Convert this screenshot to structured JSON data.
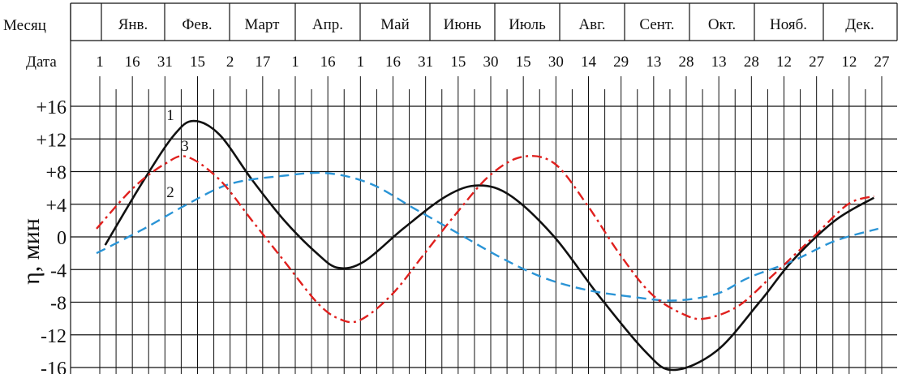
{
  "chart_data": {
    "type": "line",
    "row_labels": {
      "month": "Месяц",
      "date": "Дата"
    },
    "months": [
      "Янв.",
      "Фев.",
      "Март",
      "Апр.",
      "Май",
      "Июнь",
      "Июль",
      "Авг.",
      "Сент.",
      "Окт.",
      "Нояб.",
      "Дек."
    ],
    "dates": [
      "1",
      "16",
      "31",
      "15",
      "2",
      "17",
      "1",
      "16",
      "1",
      "16",
      "31",
      "15",
      "30",
      "15",
      "30",
      "14",
      "29",
      "13",
      "28",
      "13",
      "28",
      "12",
      "27",
      "12",
      "27"
    ],
    "ylabel": "η, мин",
    "yticks": [
      "+16",
      "+12",
      "+8",
      "+4",
      "0",
      "-4",
      "-8",
      "-12",
      "-16"
    ],
    "ylim": [
      -16,
      16
    ],
    "grid": true,
    "x_axis_days_range": [
      1,
      365
    ],
    "series": [
      {
        "name": "1",
        "color": "#111111",
        "dash": "solid",
        "points": [
          [
            2,
            -1
          ],
          [
            20,
            7
          ],
          [
            34,
            12.5
          ],
          [
            43,
            14.2
          ],
          [
            55,
            12.5
          ],
          [
            70,
            7
          ],
          [
            85,
            2
          ],
          [
            100,
            -2
          ],
          [
            110,
            -3.8
          ],
          [
            122,
            -3
          ],
          [
            140,
            1
          ],
          [
            160,
            5
          ],
          [
            175,
            6.3
          ],
          [
            190,
            5
          ],
          [
            210,
            0
          ],
          [
            230,
            -7
          ],
          [
            252,
            -14
          ],
          [
            265,
            -16.3
          ],
          [
            285,
            -14
          ],
          [
            305,
            -8
          ],
          [
            320,
            -3
          ],
          [
            340,
            2
          ],
          [
            358,
            4.8
          ]
        ]
      },
      {
        "name": "2",
        "color": "#2a94d6",
        "dash": "dashed",
        "points": [
          [
            -2,
            -2
          ],
          [
            20,
            1
          ],
          [
            40,
            4
          ],
          [
            60,
            6.5
          ],
          [
            85,
            7.5
          ],
          [
            105,
            7.8
          ],
          [
            125,
            6.5
          ],
          [
            145,
            3.5
          ],
          [
            165,
            0.5
          ],
          [
            185,
            -2.5
          ],
          [
            205,
            -5
          ],
          [
            225,
            -6.5
          ],
          [
            245,
            -7.3
          ],
          [
            265,
            -7.8
          ],
          [
            285,
            -7
          ],
          [
            300,
            -5
          ],
          [
            320,
            -3
          ],
          [
            340,
            -0.5
          ],
          [
            360,
            1
          ]
        ]
      },
      {
        "name": "3",
        "color": "#e0201e",
        "dash": "dashdot",
        "points": [
          [
            -2,
            1
          ],
          [
            15,
            6
          ],
          [
            30,
            9
          ],
          [
            40,
            9.8
          ],
          [
            55,
            7
          ],
          [
            70,
            2
          ],
          [
            85,
            -3
          ],
          [
            100,
            -8
          ],
          [
            110,
            -10
          ],
          [
            120,
            -10.2
          ],
          [
            135,
            -7
          ],
          [
            150,
            -2
          ],
          [
            165,
            3
          ],
          [
            180,
            7.5
          ],
          [
            195,
            9.8
          ],
          [
            210,
            9
          ],
          [
            225,
            4
          ],
          [
            240,
            -2
          ],
          [
            255,
            -7
          ],
          [
            270,
            -9.5
          ],
          [
            280,
            -10
          ],
          [
            295,
            -8.5
          ],
          [
            310,
            -5
          ],
          [
            330,
            0
          ],
          [
            346,
            4
          ],
          [
            358,
            5
          ]
        ]
      }
    ]
  }
}
